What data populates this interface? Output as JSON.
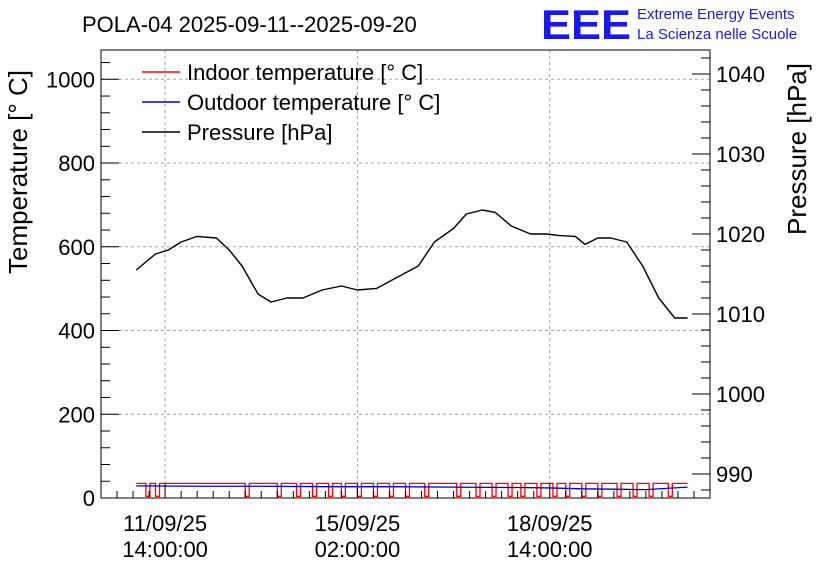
{
  "header": {
    "title": "POLA-04 2025-09-11--2025-09-20",
    "logo_mark": "EEE",
    "logo_line1": "Extreme Energy Events",
    "logo_line2": "La Scienza nelle Scuole"
  },
  "chart_data": {
    "type": "line",
    "ylabel": "Temperature [° C]",
    "y2label": "Pressure [hPa]",
    "ylim": [
      0,
      1070
    ],
    "y2lim": [
      987,
      1043
    ],
    "y_ticks": [
      0,
      200,
      400,
      600,
      800,
      1000
    ],
    "y2_ticks": [
      990,
      1000,
      1010,
      1020,
      1030,
      1040
    ],
    "y_tick_labels": [
      "0",
      "200",
      "400",
      "600",
      "800",
      "1000"
    ],
    "y2_tick_labels": [
      "990",
      "1000",
      "1010",
      "1020",
      "1030",
      "1040"
    ],
    "xlim": [
      0,
      9.5
    ],
    "x_ticks": [
      {
        "x": 1.0,
        "line1": "11/09/25",
        "line2": "14:00:00"
      },
      {
        "x": 4.0,
        "line1": "15/09/25",
        "line2": "02:00:00"
      },
      {
        "x": 7.0,
        "line1": "18/09/25",
        "line2": "14:00:00"
      }
    ],
    "grid": true,
    "legend_position": "top-left",
    "series": [
      {
        "name": "Indoor temperature [° C]",
        "axis": "left",
        "color": "#ff0000",
        "style": "gapped",
        "high": 35,
        "low": 4,
        "x_start": 0.55,
        "x_end": 9.15,
        "gaps": [
          0.7,
          0.85,
          2.25,
          2.75,
          3.05,
          3.3,
          3.55,
          3.75,
          4.0,
          4.25,
          4.5,
          4.75,
          5.05,
          5.55,
          5.85,
          6.1,
          6.35,
          6.55,
          6.8,
          7.05,
          7.25,
          7.5,
          7.75,
          8.05,
          8.3,
          8.55,
          8.85
        ]
      },
      {
        "name": "Outdoor temperature [° C]",
        "axis": "left",
        "color": "#0000cc",
        "x": [
          0.55,
          1.5,
          2.5,
          3.5,
          4.5,
          5.5,
          6.5,
          7.0,
          7.5,
          8.0,
          8.5,
          9.15
        ],
        "values": [
          29,
          28,
          28,
          27,
          27,
          26,
          25,
          24,
          22,
          21,
          20,
          26
        ]
      },
      {
        "name": "Pressure [hPa]",
        "axis": "right",
        "color": "#000000",
        "x": [
          0.55,
          0.85,
          1.05,
          1.25,
          1.5,
          1.8,
          2.0,
          2.2,
          2.45,
          2.65,
          2.9,
          3.15,
          3.45,
          3.75,
          4.0,
          4.3,
          4.6,
          4.95,
          5.2,
          5.5,
          5.7,
          5.95,
          6.15,
          6.4,
          6.7,
          6.95,
          7.15,
          7.4,
          7.55,
          7.75,
          7.95,
          8.2,
          8.45,
          8.7,
          8.95,
          9.15
        ],
        "values": [
          1015.5,
          1017.5,
          1018,
          1019,
          1019.7,
          1019.5,
          1018,
          1016,
          1012.5,
          1011.5,
          1012,
          1012,
          1013,
          1013.5,
          1013,
          1013.2,
          1014.5,
          1016,
          1019,
          1020.7,
          1022.5,
          1023,
          1022.7,
          1021,
          1020,
          1020,
          1019.8,
          1019.7,
          1018.7,
          1019.5,
          1019.5,
          1019,
          1016,
          1012,
          1009.5,
          1009.5
        ]
      }
    ]
  }
}
